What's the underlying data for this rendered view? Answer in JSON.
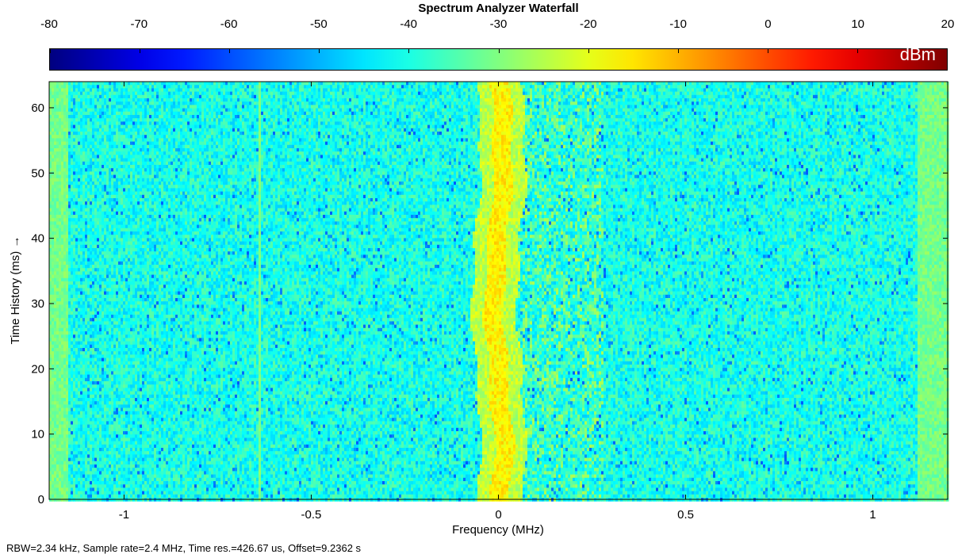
{
  "chart_data": {
    "type": "heatmap",
    "title": "Spectrum Analyzer Waterfall",
    "xlabel": "Frequency (MHz)",
    "ylabel": "Time History (ms) →",
    "xlim": [
      -1.2,
      1.2
    ],
    "ylim": [
      0,
      64
    ],
    "x_ticks": [
      -1,
      -0.5,
      0,
      0.5,
      1
    ],
    "x_tick_labels": [
      "-1",
      "-0.5",
      "0",
      "0.5",
      "1"
    ],
    "y_ticks": [
      0,
      10,
      20,
      30,
      40,
      50,
      60
    ],
    "y_tick_labels": [
      "0",
      "10",
      "20",
      "30",
      "40",
      "50",
      "60"
    ],
    "colorbar": {
      "unit": "dBm",
      "range": [
        -80,
        20
      ],
      "ticks": [
        -80,
        -70,
        -60,
        -50,
        -40,
        -30,
        -20,
        -10,
        0,
        10,
        20
      ],
      "tick_labels": [
        "-80",
        "-70",
        "-60",
        "-50",
        "-40",
        "-30",
        "-20",
        "-10",
        "0",
        "10",
        "20"
      ],
      "colormap": "jet",
      "placement": "top"
    },
    "features": {
      "noise_floor_dbm": -40,
      "carrier_center_mhz": 0,
      "carrier_level_dbm": -17,
      "edge_rolloff_mhz": [
        -1.15,
        1.12
      ],
      "edge_level_dbm": -30,
      "weak_spur_mhz": -0.64
    },
    "footer": "RBW=2.34 kHz, Sample rate=2.4 MHz, Time res.=426.67 us, Offset=9.2362 s"
  }
}
